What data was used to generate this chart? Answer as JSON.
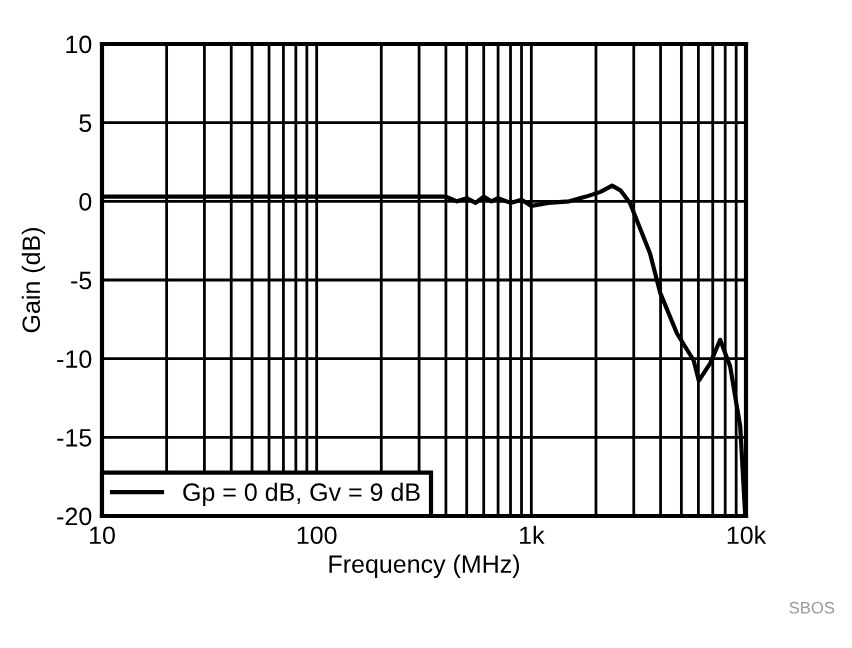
{
  "chart_data": {
    "type": "line",
    "xlabel": "Frequency (MHz)",
    "ylabel": "Gain (dB)",
    "log": "x",
    "xlim": [
      10,
      10000
    ],
    "xticks": [
      10,
      100,
      {
        "value": 1000,
        "label": "1k"
      },
      {
        "value": 10000,
        "label": "10k"
      }
    ],
    "ylim": [
      -20,
      10
    ],
    "yticks": [
      -20,
      -15,
      -10,
      -5,
      0,
      5,
      10
    ],
    "grid": true,
    "legend": "bottom left",
    "series": [
      {
        "name": "Gp = 0 dB, Gv = 9 dB",
        "color": "#000000",
        "x": [
          10,
          100,
          400,
          450,
          500,
          550,
          600,
          650,
          700,
          800,
          900,
          1000,
          1200,
          1500,
          1800,
          2100,
          2380,
          2600,
          2880,
          3570,
          3980,
          4770,
          5700,
          6030,
          6810,
          7580,
          8440,
          9400,
          9900
        ],
        "values": [
          0.3,
          0.3,
          0.3,
          0.0,
          0.2,
          -0.1,
          0.3,
          0.0,
          0.2,
          -0.1,
          0.1,
          -0.3,
          -0.1,
          0.0,
          0.3,
          0.6,
          1.0,
          0.7,
          -0.1,
          -3.3,
          -5.8,
          -8.4,
          -10.1,
          -11.4,
          -10.3,
          -8.8,
          -10.5,
          -14.3,
          -19.8
        ]
      }
    ],
    "annotations": [
      "SBOS"
    ]
  }
}
